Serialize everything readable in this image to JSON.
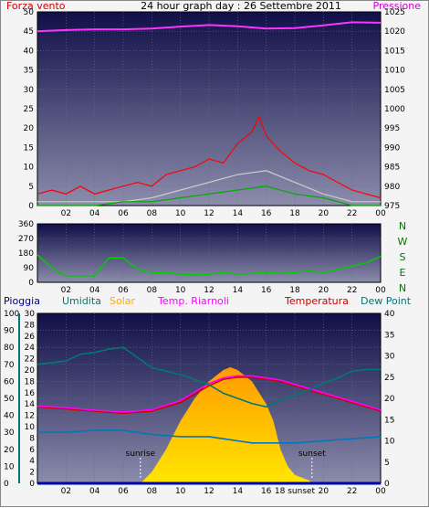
{
  "chart_data": [
    {
      "type": "line",
      "title": "24 hour graph day : 26 Settembre 2011",
      "left_axis_label": "Forza vento",
      "right_axis_label": "Pressione",
      "left_ylim": [
        0,
        50
      ],
      "right_ylim": [
        975,
        1025
      ],
      "x_ticks": [
        "02",
        "04",
        "06",
        "08",
        "10",
        "12",
        "14",
        "16",
        "18",
        "20",
        "22",
        "00"
      ],
      "left_ticks": [
        "0",
        "5",
        "10",
        "15",
        "20",
        "25",
        "30",
        "35",
        "40",
        "45",
        "50"
      ],
      "right_ticks": [
        "975",
        "980",
        "985",
        "990",
        "995",
        "1000",
        "1005",
        "1010",
        "1015",
        "1020",
        "1025"
      ],
      "series": [
        {
          "name": "Pressione",
          "axis": "right",
          "color": "#ff33ff",
          "x": [
            0,
            2,
            4,
            6,
            8,
            10,
            12,
            14,
            16,
            18,
            20,
            22,
            24
          ],
          "y": [
            1020.0,
            1020.3,
            1020.5,
            1020.5,
            1020.7,
            1021.2,
            1021.6,
            1021.3,
            1020.7,
            1020.8,
            1021.5,
            1022.3,
            1022.2
          ]
        },
        {
          "name": "Forza vento",
          "axis": "left",
          "color": "#ff0000",
          "x": [
            0,
            1,
            2,
            3,
            4,
            5,
            6,
            7,
            8,
            9,
            10,
            11,
            12,
            13,
            14,
            15,
            15.5,
            16,
            17,
            18,
            19,
            20,
            21,
            22,
            23,
            24
          ],
          "y": [
            3,
            4,
            3,
            5,
            3,
            4,
            5,
            6,
            5,
            8,
            9,
            10,
            12,
            11,
            16,
            19,
            23,
            18,
            14,
            11,
            9,
            8,
            6,
            4,
            3,
            2
          ]
        },
        {
          "color": "#cccccc",
          "x": [
            0,
            2,
            4,
            6,
            8,
            10,
            12,
            14,
            16,
            18,
            20,
            22,
            24
          ],
          "y": [
            1,
            1,
            1,
            1,
            2,
            4,
            6,
            8,
            9,
            6,
            3,
            1,
            1
          ]
        },
        {
          "color": "#00aa00",
          "x": [
            0,
            2,
            4,
            6,
            8,
            10,
            12,
            14,
            16,
            18,
            20,
            22,
            24
          ],
          "y": [
            0,
            0,
            0,
            1,
            1,
            2,
            3,
            4,
            5,
            3,
            2,
            0,
            0
          ]
        }
      ]
    },
    {
      "type": "line",
      "title": "",
      "left_ylim": [
        0,
        360
      ],
      "left_ticks": [
        "0",
        "90",
        "180",
        "270",
        "360"
      ],
      "direction_labels": [
        "N",
        "W",
        "S",
        "E",
        "N"
      ],
      "x_ticks": [
        "02",
        "04",
        "06",
        "08",
        "10",
        "12",
        "14",
        "16",
        "18",
        "20",
        "22",
        "00"
      ],
      "series": [
        {
          "color": "#00cc00",
          "x": [
            0,
            1,
            2,
            3,
            4,
            5,
            6,
            7,
            8,
            9,
            10,
            11,
            12,
            13,
            14,
            15,
            16,
            17,
            18,
            19,
            20,
            21,
            22,
            23,
            24
          ],
          "y": [
            170,
            90,
            40,
            40,
            40,
            150,
            150,
            80,
            60,
            60,
            50,
            45,
            50,
            60,
            50,
            55,
            60,
            55,
            60,
            70,
            60,
            80,
            100,
            120,
            160
          ]
        }
      ]
    },
    {
      "type": "line",
      "title": "",
      "legend": [
        "Pioggia",
        "Umidita",
        "Solar",
        "Temp. Riarnoli",
        "Temperatura",
        "Dew Point"
      ],
      "legend_colors": [
        "#00008b",
        "#007777",
        "#ffaa00",
        "#ff00ff",
        "#cc0000",
        "#007777"
      ],
      "left_ticks_outer": [
        "0",
        "10",
        "20",
        "30",
        "40",
        "50",
        "60",
        "70",
        "80",
        "90",
        "100"
      ],
      "left_ticks_inner": [
        "0",
        "2",
        "4",
        "6",
        "8",
        "10",
        "12",
        "14",
        "16",
        "18",
        "20",
        "22",
        "24",
        "26",
        "28",
        "30"
      ],
      "right_ticks": [
        "0",
        "5",
        "10",
        "15",
        "20",
        "25",
        "30",
        "35",
        "40"
      ],
      "right_ylim": [
        0,
        40
      ],
      "inner_ylim": [
        0,
        30
      ],
      "x_ticks": [
        "02",
        "04",
        "06",
        "08",
        "10",
        "12",
        "14",
        "16",
        "18 sunset",
        "20",
        "22",
        "00"
      ],
      "annotations": [
        "sunrise",
        "sunset"
      ],
      "sunrise_hour": 7.2,
      "sunset_hour": 19.2,
      "series": [
        {
          "name": "Temperatura",
          "axis": "right",
          "color": "#cc0000",
          "x": [
            0,
            2,
            4,
            6,
            8,
            10,
            12,
            13,
            14,
            15,
            16,
            17,
            18,
            20,
            22,
            24
          ],
          "y": [
            18,
            17.5,
            17,
            16.5,
            17,
            19,
            23,
            24.5,
            25,
            25,
            24.5,
            24,
            23,
            21,
            19,
            17
          ]
        },
        {
          "name": "Temp. Riarnoli",
          "axis": "right",
          "color": "#ff00ff",
          "x": [
            0,
            2,
            4,
            6,
            8,
            10,
            12,
            13,
            14,
            15,
            16,
            17,
            18,
            20,
            22,
            24
          ],
          "y": [
            18.2,
            17.8,
            17.2,
            16.8,
            17.3,
            19.5,
            23.5,
            24.8,
            25.3,
            25.3,
            24.8,
            24.3,
            23.3,
            21.3,
            19.3,
            17.3
          ]
        },
        {
          "name": "Umidita",
          "axis": "outer",
          "color": "#007777",
          "x": [
            0,
            1,
            2,
            3,
            4,
            5,
            6,
            7,
            8,
            9,
            10,
            11,
            12,
            13,
            14,
            15,
            16,
            17,
            18,
            19,
            20,
            21,
            22,
            23,
            24
          ],
          "y": [
            70,
            71,
            72,
            76,
            77,
            79,
            80,
            74,
            68,
            66,
            64,
            61,
            58,
            53,
            50,
            47,
            45,
            49,
            52,
            55,
            59,
            62,
            66,
            67,
            67
          ]
        },
        {
          "name": "Dew Point",
          "axis": "right",
          "color": "#0077bb",
          "x": [
            0,
            2,
            4,
            6,
            8,
            10,
            12,
            13,
            14,
            15,
            16,
            17,
            18,
            20,
            22,
            24
          ],
          "y": [
            12,
            12,
            12.5,
            12.5,
            11.5,
            11,
            11,
            10.5,
            10,
            9.5,
            9.5,
            9.5,
            9.5,
            10,
            10.5,
            11
          ]
        },
        {
          "name": "Solar",
          "axis": "inner",
          "color": "#ffaa00",
          "x": [
            7.2,
            8,
            9,
            10,
            11,
            12,
            13,
            13.5,
            14,
            15,
            16,
            16.5,
            17,
            17.5,
            18,
            19,
            19.2
          ],
          "y": [
            0,
            2,
            6,
            11,
            15,
            18,
            20,
            20.5,
            20,
            18,
            14,
            11,
            6,
            3,
            1.5,
            0.5,
            0
          ]
        },
        {
          "name": "Pioggia",
          "axis": "outer",
          "color": "#0000aa",
          "x": [
            0,
            24
          ],
          "y": [
            0,
            0
          ]
        }
      ]
    }
  ]
}
